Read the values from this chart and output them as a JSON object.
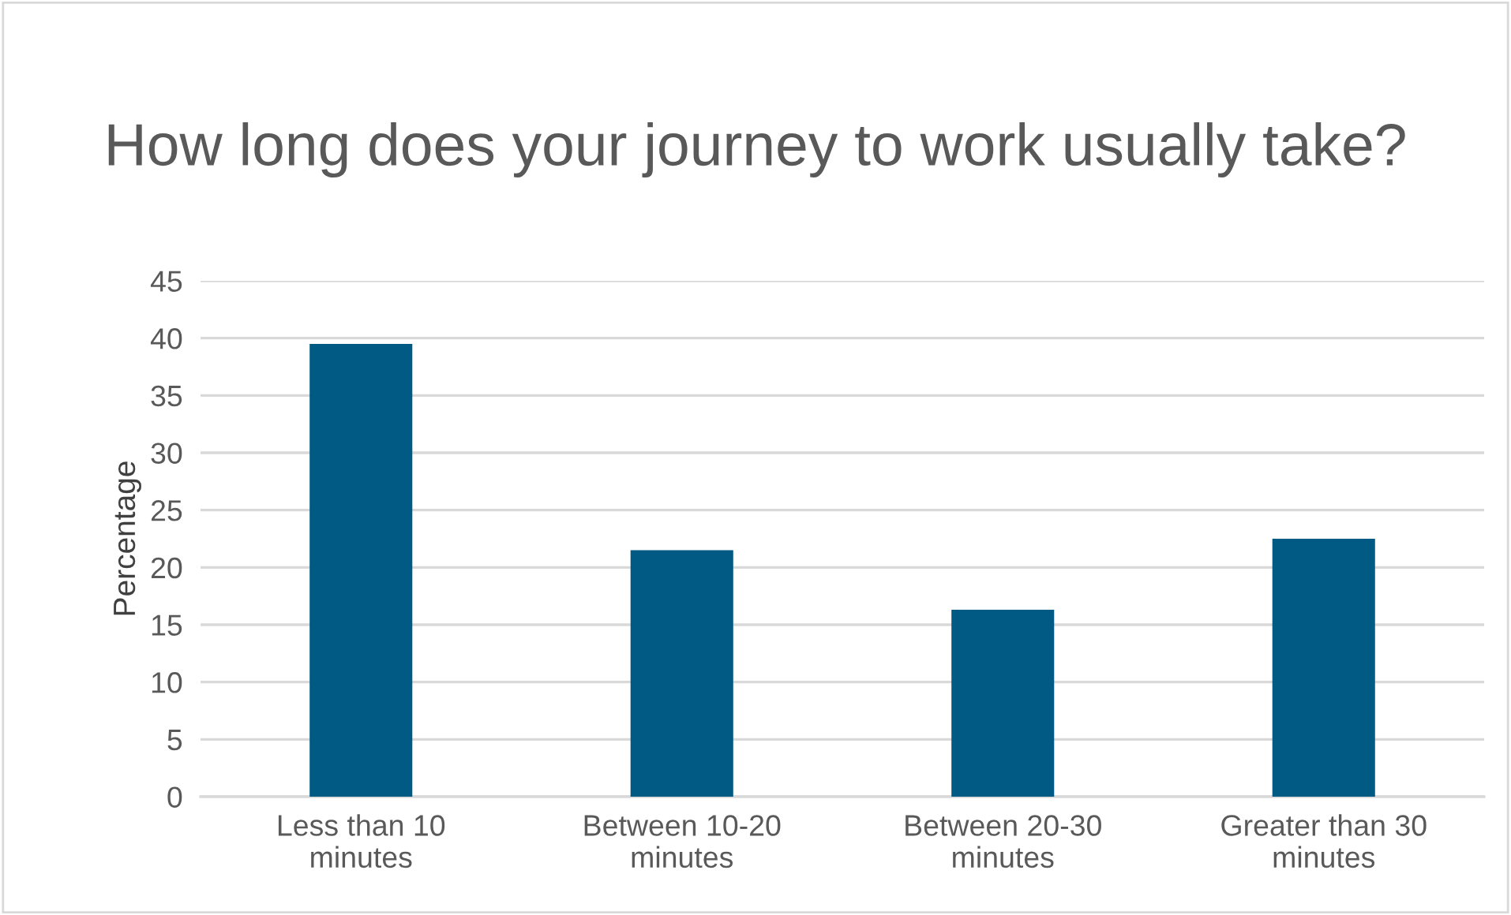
{
  "chart_data": {
    "type": "bar",
    "title": "How long does your journey to work usually take?",
    "ylabel": "Percentage",
    "categories": [
      "Less than 10 minutes",
      "Between 10-20 minutes",
      "Between 20-30 minutes",
      "Greater than 30 minutes"
    ],
    "values": [
      39.5,
      21.5,
      16.3,
      22.5
    ],
    "color": "#005a84",
    "ylim": [
      0,
      45
    ],
    "yticks": [
      0,
      5,
      10,
      15,
      20,
      25,
      30,
      35,
      40,
      45
    ],
    "grid": "y"
  }
}
